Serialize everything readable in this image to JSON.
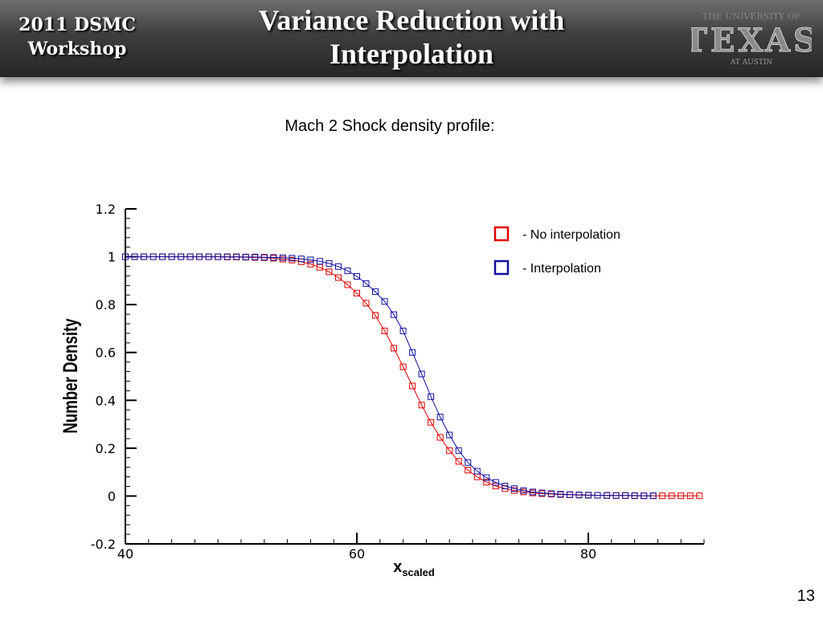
{
  "header": {
    "workshop_line1": "2011 DSMC",
    "workshop_line2": "Workshop",
    "title_line1": "Variance Reduction with",
    "title_line2": "Interpolation",
    "logo_top": "THE UNIVERSITY OF",
    "logo_main": "TEXAS",
    "logo_bottom": "AT AUSTIN"
  },
  "subtitle": "Mach 2 Shock density profile:",
  "page_number": "13",
  "colors": {
    "no_interp": "#e00000",
    "interp": "#1010a0",
    "header_dark": "#2e2e2e"
  },
  "chart_data": {
    "type": "scatter",
    "xlabel_main": "x",
    "xlabel_sub": "scaled",
    "ylabel": "Number Density",
    "xlim": [
      40,
      90
    ],
    "ylim": [
      -0.2,
      1.2
    ],
    "xticks": [
      40,
      60,
      80
    ],
    "xtick_labels": [
      "40",
      "60",
      "80"
    ],
    "yticks": [
      -0.2,
      0,
      0.2,
      0.4,
      0.6,
      0.8,
      1,
      1.2
    ],
    "ytick_labels": [
      "-0.2",
      "0",
      "0.2",
      "0.4",
      "0.6",
      "0.8",
      "1",
      "1.2"
    ],
    "legend_position": "top-right",
    "series": [
      {
        "name": "- No interpolation",
        "color": "#e00000",
        "x": [
          40,
          40.8,
          41.6,
          42.4,
          43.2,
          44,
          44.8,
          45.6,
          46.4,
          47.2,
          48,
          48.8,
          49.6,
          50.4,
          51.2,
          52,
          52.8,
          53.6,
          54.4,
          55.2,
          56,
          56.8,
          57.6,
          58.4,
          59.2,
          60,
          60.8,
          61.6,
          62.4,
          63.2,
          64,
          64.8,
          65.6,
          66.4,
          67.2,
          68,
          68.8,
          69.6,
          70.4,
          71.2,
          72,
          72.8,
          73.6,
          74.4,
          75.2,
          76,
          76.8,
          77.6,
          78.4,
          79.2,
          80,
          80.8,
          81.6,
          82.4,
          83.2,
          84,
          84.8,
          85.6,
          86.4,
          87.2,
          88,
          88.8,
          89.6
        ],
        "y": [
          1.0,
          1.0,
          1.0,
          1.0,
          1.0,
          1.0,
          1.0,
          1.0,
          1.0,
          1.0,
          1.0,
          0.999,
          0.999,
          0.998,
          0.997,
          0.996,
          0.994,
          0.99,
          0.986,
          0.979,
          0.969,
          0.956,
          0.937,
          0.913,
          0.883,
          0.848,
          0.806,
          0.755,
          0.69,
          0.618,
          0.54,
          0.46,
          0.38,
          0.308,
          0.245,
          0.19,
          0.145,
          0.108,
          0.08,
          0.058,
          0.042,
          0.031,
          0.023,
          0.017,
          0.013,
          0.01,
          0.008,
          0.006,
          0.005,
          0.004,
          0.003,
          0.003,
          0.002,
          0.002,
          0.002,
          0.001,
          0.001,
          0.001,
          0.001,
          0.001,
          0.001,
          0.001,
          0.001
        ]
      },
      {
        "name": "- Interpolation",
        "color": "#1010a0",
        "x": [
          40,
          40.8,
          41.6,
          42.4,
          43.2,
          44,
          44.8,
          45.6,
          46.4,
          47.2,
          48,
          48.8,
          49.6,
          50.4,
          51.2,
          52,
          52.8,
          53.6,
          54.4,
          55.2,
          56,
          56.8,
          57.6,
          58.4,
          59.2,
          60,
          60.8,
          61.6,
          62.4,
          63.2,
          64,
          64.8,
          65.6,
          66.4,
          67.2,
          68,
          68.8,
          69.6,
          70.4,
          71.2,
          72,
          72.8,
          73.6,
          74.4,
          75.2,
          76,
          76.8,
          77.6,
          78.4,
          79.2,
          80,
          80.8,
          81.6,
          82.4,
          83.2,
          84,
          84.8,
          85.6
        ],
        "y": [
          1.0,
          1.0,
          1.0,
          1.0,
          1.0,
          1.0,
          1.0,
          1.0,
          1.0,
          1.0,
          1.0,
          1.0,
          1.0,
          0.999,
          0.999,
          0.998,
          0.997,
          0.996,
          0.994,
          0.991,
          0.987,
          0.981,
          0.972,
          0.959,
          0.941,
          0.918,
          0.888,
          0.854,
          0.813,
          0.758,
          0.69,
          0.6,
          0.51,
          0.415,
          0.33,
          0.255,
          0.19,
          0.14,
          0.104,
          0.077,
          0.057,
          0.042,
          0.031,
          0.023,
          0.017,
          0.013,
          0.01,
          0.008,
          0.006,
          0.005,
          0.004,
          0.003,
          0.003,
          0.002,
          0.002,
          0.002,
          0.001,
          0.001
        ]
      }
    ]
  }
}
